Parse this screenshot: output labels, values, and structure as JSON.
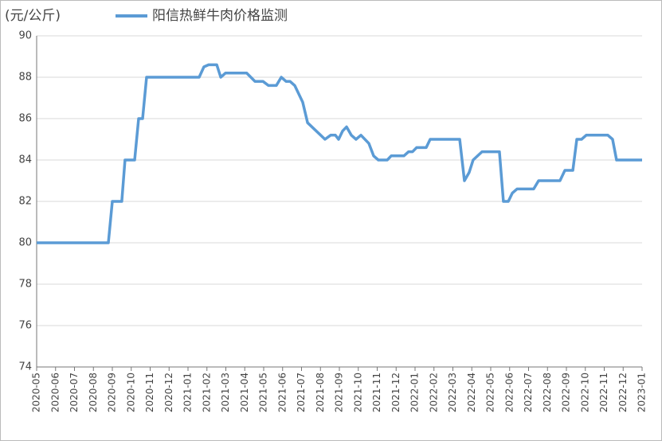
{
  "chart_data": {
    "type": "line",
    "unit_label": "(元/公斤)",
    "series": [
      {
        "name": "阳信热鲜牛肉价格监测",
        "color": "#5b9bd5",
        "x": [
          0,
          3.79,
          4.0,
          4.5,
          4.67,
          5.18,
          5.39,
          5.6,
          5.81,
          8.59,
          8.84,
          9.09,
          9.52,
          9.73,
          9.98,
          11.1,
          11.54,
          11.96,
          12.25,
          12.67,
          12.93,
          13.18,
          13.39,
          13.64,
          14.06,
          14.32,
          15.24,
          15.54,
          15.79,
          15.96,
          16.17,
          16.38,
          16.63,
          16.88,
          17.14,
          17.56,
          17.81,
          18.06,
          18.53,
          18.74,
          19.41,
          19.66,
          19.87,
          20.08,
          20.59,
          20.8,
          22.36,
          22.61,
          22.86,
          23.07,
          23.54,
          24.46,
          24.67,
          24.93,
          25.14,
          25.39,
          26.27,
          26.53,
          27.66,
          27.92,
          28.34,
          28.55,
          28.8,
          29.05,
          30.19,
          30.44,
          30.65,
          32.0
        ],
        "values": [
          80,
          80,
          82,
          82,
          84,
          84,
          86,
          86,
          88,
          88,
          88.5,
          88.6,
          88.6,
          88,
          88.2,
          88.2,
          87.8,
          87.8,
          87.6,
          87.6,
          88,
          87.8,
          87.8,
          87.6,
          86.8,
          85.8,
          85,
          85.2,
          85.2,
          85,
          85.4,
          85.6,
          85.2,
          85,
          85.2,
          84.8,
          84.2,
          84,
          84,
          84.2,
          84.2,
          84.4,
          84.4,
          84.6,
          84.6,
          85,
          85,
          83,
          83.4,
          84,
          84.4,
          84.4,
          82,
          82,
          82.4,
          82.6,
          82.6,
          83,
          83,
          83.5,
          83.5,
          85,
          85,
          85.2,
          85.2,
          85,
          84,
          84
        ]
      }
    ],
    "xlim": [
      0,
      32
    ],
    "xticks": [
      {
        "value": 0,
        "label": "2020-05"
      },
      {
        "value": 1,
        "label": "2020-06"
      },
      {
        "value": 2,
        "label": "2020-07"
      },
      {
        "value": 3,
        "label": "2020-08"
      },
      {
        "value": 4,
        "label": "2020-09"
      },
      {
        "value": 5,
        "label": "2020-10"
      },
      {
        "value": 6,
        "label": "2020-11"
      },
      {
        "value": 7,
        "label": "2020-12"
      },
      {
        "value": 8,
        "label": "2021-01"
      },
      {
        "value": 9,
        "label": "2021-02"
      },
      {
        "value": 10,
        "label": "2021-03"
      },
      {
        "value": 11,
        "label": "2021-04"
      },
      {
        "value": 12,
        "label": "2021-05"
      },
      {
        "value": 13,
        "label": "2021-06"
      },
      {
        "value": 14,
        "label": "2021-07"
      },
      {
        "value": 15,
        "label": "2021-08"
      },
      {
        "value": 16,
        "label": "2021-09"
      },
      {
        "value": 17,
        "label": "2021-10"
      },
      {
        "value": 18,
        "label": "2021-11"
      },
      {
        "value": 19,
        "label": "2021-12"
      },
      {
        "value": 20,
        "label": "2022-01"
      },
      {
        "value": 21,
        "label": "2022-02"
      },
      {
        "value": 22,
        "label": "2022-03"
      },
      {
        "value": 23,
        "label": "2022-04"
      },
      {
        "value": 24,
        "label": "2022-05"
      },
      {
        "value": 25,
        "label": "2022-06"
      },
      {
        "value": 26,
        "label": "2022-07"
      },
      {
        "value": 27,
        "label": "2022-08"
      },
      {
        "value": 28,
        "label": "2022-09"
      },
      {
        "value": 29,
        "label": "2022-10"
      },
      {
        "value": 30,
        "label": "2022-11"
      },
      {
        "value": 31,
        "label": "2022-12"
      },
      {
        "value": 32,
        "label": "2023-01"
      }
    ],
    "ylim": [
      74,
      90
    ],
    "yticks": [
      74,
      76,
      78,
      80,
      82,
      84,
      86,
      88,
      90
    ],
    "grid": true
  }
}
